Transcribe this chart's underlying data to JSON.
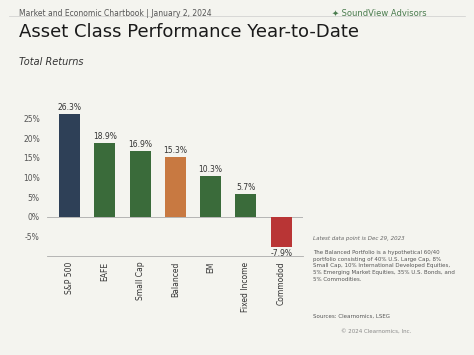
{
  "categories": [
    "S&P 500",
    "EAFE",
    "Small Cap",
    "Balanced",
    "EM",
    "Fixed Income",
    "Commodod"
  ],
  "values": [
    26.3,
    18.9,
    16.9,
    15.3,
    10.3,
    5.7,
    -7.9
  ],
  "bar_colors": [
    "#2e4057",
    "#3a6b3a",
    "#3a6b3a",
    "#c87941",
    "#3a6b3a",
    "#3a6b3a",
    "#b93535"
  ],
  "value_labels": [
    "26.3%",
    "18.9%",
    "16.9%",
    "15.3%",
    "10.3%",
    "5.7%",
    "-7.9%"
  ],
  "title": "Asset Class Performance Year-to-Date",
  "subtitle": "Total Returns",
  "header": "Market and Economic Chartbook | January 2, 2024",
  "note1": "Latest data point is Dec 29, 2023",
  "note2": "The Balanced Portfolio is a hypothetical 60/40\nportfolio consisting of 40% U.S. Large Cap, 8%\nSmall Cap, 10% International Developed Equities,\n5% Emerging Market Equities, 35% U.S. Bonds, and\n5% Commodities.",
  "note3": "Sources: Clearnomics, LSEG",
  "note4": "© 2024 Clearnomics, Inc.",
  "soundview_text": "SoundView Advisors",
  "ylim": [
    -10,
    30
  ],
  "yticks": [
    -5,
    0,
    5,
    10,
    15,
    20,
    25
  ],
  "background_color": "#f4f4ef",
  "bar_edge_color": "none",
  "title_fontsize": 13,
  "subtitle_fontsize": 7,
  "header_fontsize": 5.5,
  "label_fontsize": 5.5,
  "tick_fontsize": 5.5,
  "note_fontsize": 4.0,
  "soundview_fontsize": 6
}
